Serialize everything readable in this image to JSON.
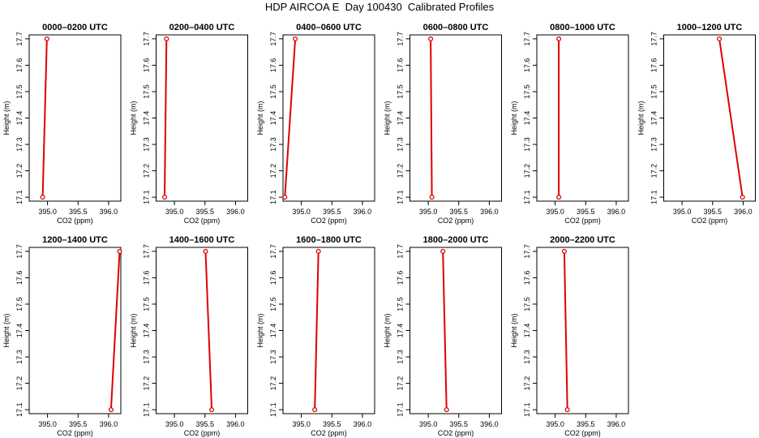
{
  "title": "HDP AIRCOA E  Day 100430  Calibrated Profiles",
  "colors": {
    "series": "#e00000",
    "axis": "#000000",
    "background": "#ffffff"
  },
  "chart_data": [
    {
      "type": "line",
      "title": "0000–0200 UTC",
      "xlabel": "CO2 (ppm)",
      "ylabel": "Height (m)",
      "xlim": [
        394.7,
        396.2
      ],
      "ylim": [
        17.085,
        17.715
      ],
      "xticks": [
        395.0,
        395.5,
        396.0
      ],
      "xtick_labels": [
        "395.0",
        "395.5",
        "396.0"
      ],
      "yticks": [
        17.1,
        17.2,
        17.3,
        17.4,
        17.5,
        17.6,
        17.7
      ],
      "ytick_labels": [
        "17.1",
        "17.2",
        "17.3",
        "17.4",
        "17.5",
        "17.6",
        "17.7"
      ],
      "grid": false,
      "points": [
        {
          "x": 394.92,
          "y": 17.1
        },
        {
          "x": 394.99,
          "y": 17.7
        }
      ]
    },
    {
      "type": "line",
      "title": "0200–0400 UTC",
      "xlabel": "CO2 (ppm)",
      "ylabel": "Height (m)",
      "xlim": [
        394.7,
        396.2
      ],
      "ylim": [
        17.085,
        17.715
      ],
      "xticks": [
        395.0,
        395.5,
        396.0
      ],
      "xtick_labels": [
        "395.0",
        "395.5",
        "396.0"
      ],
      "yticks": [
        17.1,
        17.2,
        17.3,
        17.4,
        17.5,
        17.6,
        17.7
      ],
      "ytick_labels": [
        "17.1",
        "17.2",
        "17.3",
        "17.4",
        "17.5",
        "17.6",
        "17.7"
      ],
      "grid": false,
      "points": [
        {
          "x": 394.84,
          "y": 17.1
        },
        {
          "x": 394.87,
          "y": 17.7
        }
      ]
    },
    {
      "type": "line",
      "title": "0400–0600 UTC",
      "xlabel": "CO2 (ppm)",
      "ylabel": "Height (m)",
      "xlim": [
        394.7,
        396.2
      ],
      "ylim": [
        17.085,
        17.715
      ],
      "xticks": [
        395.0,
        395.5,
        396.0
      ],
      "xtick_labels": [
        "395.0",
        "395.5",
        "396.0"
      ],
      "yticks": [
        17.1,
        17.2,
        17.3,
        17.4,
        17.5,
        17.6,
        17.7
      ],
      "ytick_labels": [
        "17.1",
        "17.2",
        "17.3",
        "17.4",
        "17.5",
        "17.6",
        "17.7"
      ],
      "grid": false,
      "points": [
        {
          "x": 394.73,
          "y": 17.1
        },
        {
          "x": 394.9,
          "y": 17.7
        }
      ]
    },
    {
      "type": "line",
      "title": "0600–0800 UTC",
      "xlabel": "CO2 (ppm)",
      "ylabel": "Height (m)",
      "xlim": [
        394.7,
        396.2
      ],
      "ylim": [
        17.085,
        17.715
      ],
      "xticks": [
        395.0,
        395.5,
        396.0
      ],
      "xtick_labels": [
        "395.0",
        "395.5",
        "396.0"
      ],
      "yticks": [
        17.1,
        17.2,
        17.3,
        17.4,
        17.5,
        17.6,
        17.7
      ],
      "ytick_labels": [
        "17.1",
        "17.2",
        "17.3",
        "17.4",
        "17.5",
        "17.6",
        "17.7"
      ],
      "grid": false,
      "points": [
        {
          "x": 395.06,
          "y": 17.1
        },
        {
          "x": 395.04,
          "y": 17.7
        }
      ]
    },
    {
      "type": "line",
      "title": "0800–1000 UTC",
      "xlabel": "CO2 (ppm)",
      "ylabel": "Height (m)",
      "xlim": [
        394.7,
        396.2
      ],
      "ylim": [
        17.085,
        17.715
      ],
      "xticks": [
        395.0,
        395.5,
        396.0
      ],
      "xtick_labels": [
        "395.0",
        "395.5",
        "396.0"
      ],
      "yticks": [
        17.1,
        17.2,
        17.3,
        17.4,
        17.5,
        17.6,
        17.7
      ],
      "ytick_labels": [
        "17.1",
        "17.2",
        "17.3",
        "17.4",
        "17.5",
        "17.6",
        "17.7"
      ],
      "grid": false,
      "points": [
        {
          "x": 395.06,
          "y": 17.1
        },
        {
          "x": 395.06,
          "y": 17.7
        }
      ]
    },
    {
      "type": "line",
      "title": "1000–1200 UTC",
      "xlabel": "CO2 (ppm)",
      "ylabel": "Height (m)",
      "xlim": [
        394.7,
        396.2
      ],
      "ylim": [
        17.085,
        17.715
      ],
      "xticks": [
        395.0,
        395.5,
        396.0
      ],
      "xtick_labels": [
        "395.0",
        "395.5",
        "396.0"
      ],
      "yticks": [
        17.1,
        17.2,
        17.3,
        17.4,
        17.5,
        17.6,
        17.7
      ],
      "ytick_labels": [
        "17.1",
        "17.2",
        "17.3",
        "17.4",
        "17.5",
        "17.6",
        "17.7"
      ],
      "grid": false,
      "points": [
        {
          "x": 395.99,
          "y": 17.1
        },
        {
          "x": 395.61,
          "y": 17.7
        }
      ]
    },
    {
      "type": "line",
      "title": "1200–1400 UTC",
      "xlabel": "CO2 (ppm)",
      "ylabel": "Height (m)",
      "xlim": [
        394.7,
        396.2
      ],
      "ylim": [
        17.085,
        17.715
      ],
      "xticks": [
        395.0,
        395.5,
        396.0
      ],
      "xtick_labels": [
        "395.0",
        "395.5",
        "396.0"
      ],
      "yticks": [
        17.1,
        17.2,
        17.3,
        17.4,
        17.5,
        17.6,
        17.7
      ],
      "ytick_labels": [
        "17.1",
        "17.2",
        "17.3",
        "17.4",
        "17.5",
        "17.6",
        "17.7"
      ],
      "grid": false,
      "points": [
        {
          "x": 396.04,
          "y": 17.1
        },
        {
          "x": 396.18,
          "y": 17.7
        }
      ]
    },
    {
      "type": "line",
      "title": "1400–1600 UTC",
      "xlabel": "CO2 (ppm)",
      "ylabel": "Height (m)",
      "xlim": [
        394.7,
        396.2
      ],
      "ylim": [
        17.085,
        17.715
      ],
      "xticks": [
        395.0,
        395.5,
        396.0
      ],
      "xtick_labels": [
        "395.0",
        "395.5",
        "396.0"
      ],
      "yticks": [
        17.1,
        17.2,
        17.3,
        17.4,
        17.5,
        17.6,
        17.7
      ],
      "ytick_labels": [
        "17.1",
        "17.2",
        "17.3",
        "17.4",
        "17.5",
        "17.6",
        "17.7"
      ],
      "grid": false,
      "points": [
        {
          "x": 395.61,
          "y": 17.1
        },
        {
          "x": 395.51,
          "y": 17.7
        }
      ]
    },
    {
      "type": "line",
      "title": "1600–1800 UTC",
      "xlabel": "CO2 (ppm)",
      "ylabel": "Height (m)",
      "xlim": [
        394.7,
        396.2
      ],
      "ylim": [
        17.085,
        17.715
      ],
      "xticks": [
        395.0,
        395.5,
        396.0
      ],
      "xtick_labels": [
        "395.0",
        "395.5",
        "396.0"
      ],
      "yticks": [
        17.1,
        17.2,
        17.3,
        17.4,
        17.5,
        17.6,
        17.7
      ],
      "ytick_labels": [
        "17.1",
        "17.2",
        "17.3",
        "17.4",
        "17.5",
        "17.6",
        "17.7"
      ],
      "grid": false,
      "points": [
        {
          "x": 395.22,
          "y": 17.1
        },
        {
          "x": 395.28,
          "y": 17.7
        }
      ]
    },
    {
      "type": "line",
      "title": "1800–2000 UTC",
      "xlabel": "CO2 (ppm)",
      "ylabel": "Height (m)",
      "xlim": [
        394.7,
        396.2
      ],
      "ylim": [
        17.085,
        17.715
      ],
      "xticks": [
        395.0,
        395.5,
        396.0
      ],
      "xtick_labels": [
        "395.0",
        "395.5",
        "396.0"
      ],
      "yticks": [
        17.1,
        17.2,
        17.3,
        17.4,
        17.5,
        17.6,
        17.7
      ],
      "ytick_labels": [
        "17.1",
        "17.2",
        "17.3",
        "17.4",
        "17.5",
        "17.6",
        "17.7"
      ],
      "grid": false,
      "points": [
        {
          "x": 395.3,
          "y": 17.1
        },
        {
          "x": 395.24,
          "y": 17.7
        }
      ]
    },
    {
      "type": "line",
      "title": "2000–2200 UTC",
      "xlabel": "CO2 (ppm)",
      "ylabel": "Height (m)",
      "xlim": [
        394.7,
        396.2
      ],
      "ylim": [
        17.085,
        17.715
      ],
      "xticks": [
        395.0,
        395.5,
        396.0
      ],
      "xtick_labels": [
        "395.0",
        "395.5",
        "396.0"
      ],
      "yticks": [
        17.1,
        17.2,
        17.3,
        17.4,
        17.5,
        17.6,
        17.7
      ],
      "ytick_labels": [
        "17.1",
        "17.2",
        "17.3",
        "17.4",
        "17.5",
        "17.6",
        "17.7"
      ],
      "grid": false,
      "points": [
        {
          "x": 395.2,
          "y": 17.1
        },
        {
          "x": 395.15,
          "y": 17.7
        }
      ]
    }
  ]
}
